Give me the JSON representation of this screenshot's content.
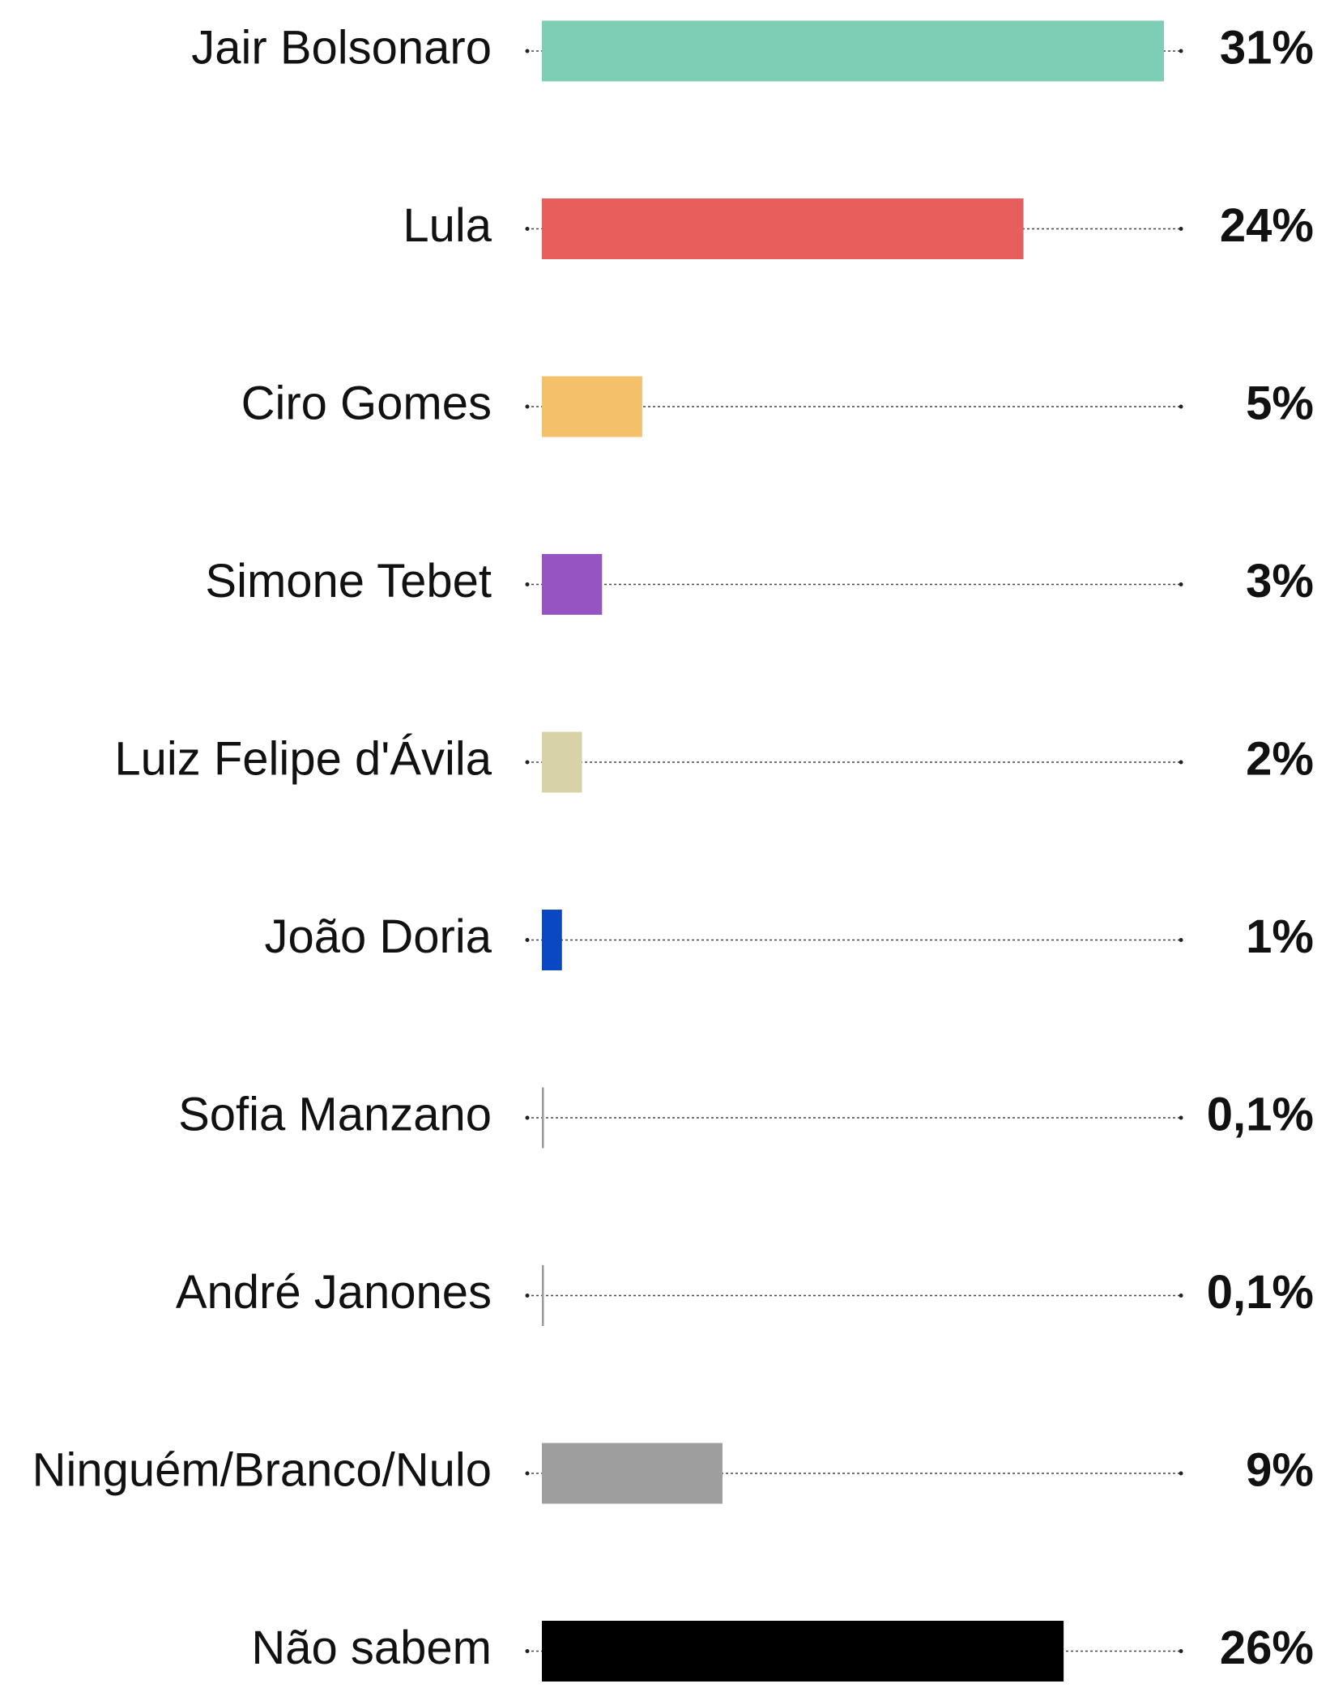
{
  "chart_data": {
    "type": "bar",
    "orientation": "horizontal",
    "categories": [
      "Jair Bolsonaro",
      "Lula",
      "Ciro Gomes",
      "Simone Tebet",
      "Luiz Felipe d'Ávila",
      "João Doria",
      "Sofia Manzano",
      "André Janones",
      "Ninguém/Branco/Nulo",
      "Não sabem"
    ],
    "values": [
      31,
      24,
      5,
      3,
      2,
      1,
      0.1,
      0.1,
      9,
      26
    ],
    "value_labels": [
      "31%",
      "24%",
      "5%",
      "3%",
      "2%",
      "1%",
      "0,1%",
      "0,1%",
      "9%",
      "26%"
    ],
    "colors": [
      "#7ecdb5",
      "#e85e5c",
      "#f4c06a",
      "#9554c2",
      "#d8d2a8",
      "#0a47c2",
      "#999999",
      "#999999",
      "#9e9e9e",
      "#000000"
    ],
    "xlim": [
      0,
      31
    ]
  }
}
